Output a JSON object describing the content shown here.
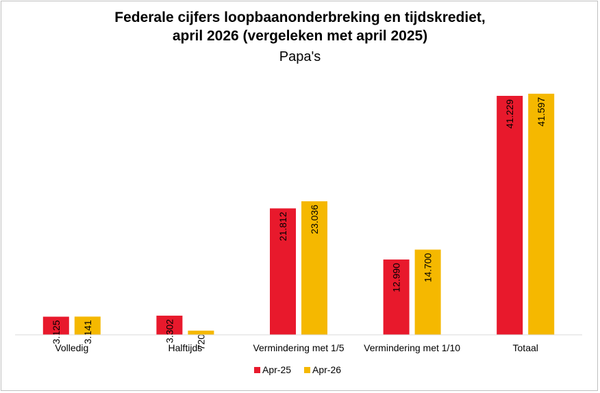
{
  "chart_data": {
    "type": "bar",
    "title": "Federale cijfers loopbaanonderbreking en tijdskrediet,",
    "title_line2": "april 2026 (vergeleken met april 2025)",
    "subtitle": "Papa's",
    "categories": [
      "Volledig",
      "Halftijds",
      "Vermindering met 1/5",
      "Vermindering met 1/10",
      "Totaal"
    ],
    "series": [
      {
        "name": "Apr-25",
        "color": "#e8192c",
        "values": [
          3125,
          3302,
          21812,
          12990,
          41229
        ],
        "labels": [
          "3.125",
          "3.302",
          "21.812",
          "12.990",
          "41.229"
        ]
      },
      {
        "name": "Apr-26",
        "color": "#f5b800",
        "values": [
          3141,
          720,
          23036,
          14700,
          41597
        ],
        "labels": [
          "3.141",
          "720",
          "23.036",
          "14.700",
          "41.597"
        ]
      }
    ],
    "ylim": [
      0,
      43000
    ],
    "grid": false,
    "legend": "bottom"
  }
}
